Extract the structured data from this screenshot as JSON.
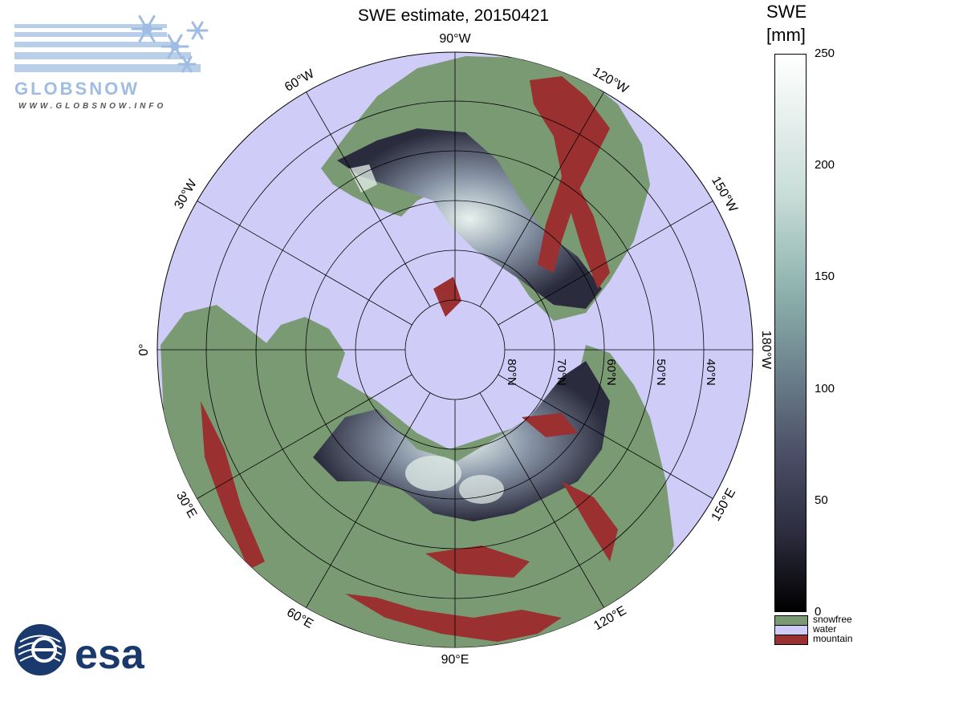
{
  "title": "SWE estimate, 20150421",
  "logo_top": {
    "name": "GLOBSNOW",
    "url": "WWW.GLOBSNOW.INFO",
    "icon": "snowflake-icon"
  },
  "logo_bottom": {
    "name": "esa",
    "icon": "esa-emblem-icon"
  },
  "colorbar": {
    "title_line1": "SWE",
    "title_line2": "[mm]",
    "ticks": [
      "250",
      "200",
      "150",
      "100",
      "50",
      "0"
    ],
    "tick_values": [
      250,
      200,
      150,
      100,
      50,
      0
    ],
    "range": [
      0,
      250
    ],
    "categories": [
      {
        "label": "snowfree",
        "color": "#7a9a73"
      },
      {
        "label": "water",
        "color": "#cfcdf7"
      },
      {
        "label": "mountain",
        "color": "#9b3030"
      }
    ]
  },
  "map": {
    "projection": "north polar stereographic",
    "ocean_color": "#cfcdf7",
    "land_color": "#7a9a73",
    "mountain_color": "#9b3030",
    "meridian_labels": [
      {
        "lon": 0,
        "label": "0°",
        "text": "0"
      },
      {
        "lon": 30,
        "label": "30°W"
      },
      {
        "lon": 60,
        "label": "60°W"
      },
      {
        "lon": 90,
        "label": "90°W"
      },
      {
        "lon": 120,
        "label": "120°W"
      },
      {
        "lon": 150,
        "label": "150°W"
      },
      {
        "lon": 180,
        "label": "180°W"
      },
      {
        "lon": 150,
        "label": "150°E"
      },
      {
        "lon": 120,
        "label": "120°E"
      },
      {
        "lon": 90,
        "label": "90°E"
      },
      {
        "lon": 60,
        "label": "60°E"
      },
      {
        "lon": 30,
        "label": "30°E"
      }
    ],
    "parallel_labels": [
      "80°N",
      "70°N",
      "60°N",
      "50°N",
      "40°N"
    ]
  }
}
